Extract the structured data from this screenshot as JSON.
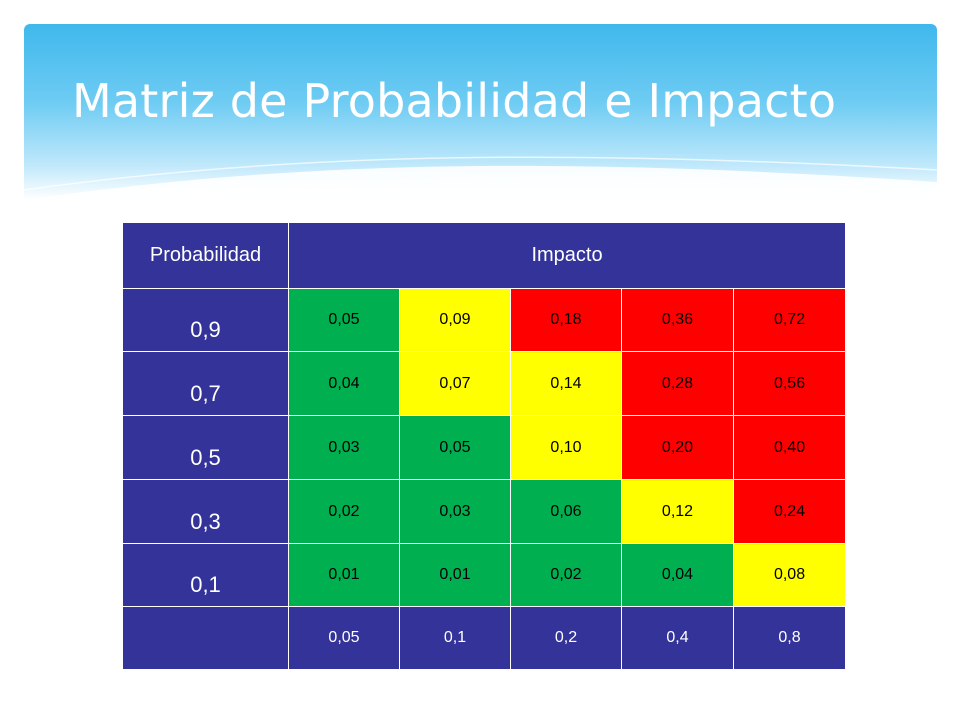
{
  "title": "Matriz de Probabilidad e Impacto",
  "matrix": {
    "prob_header": "Probabilidad",
    "impact_header": "Impacto",
    "rows": [
      {
        "prob": "0,9",
        "cells": [
          "0,05",
          "0,09",
          "0,18",
          "0,36",
          "0,72"
        ],
        "colors": [
          "g",
          "y",
          "r",
          "r",
          "r"
        ]
      },
      {
        "prob": "0,7",
        "cells": [
          "0,04",
          "0,07",
          "0,14",
          "0,28",
          "0,56"
        ],
        "colors": [
          "g",
          "y",
          "y",
          "r",
          "r"
        ]
      },
      {
        "prob": "0,5",
        "cells": [
          "0,03",
          "0,05",
          "0,10",
          "0,20",
          "0,40"
        ],
        "colors": [
          "g",
          "g",
          "y",
          "r",
          "r"
        ]
      },
      {
        "prob": "0,3",
        "cells": [
          "0,02",
          "0,03",
          "0,06",
          "0,12",
          "0,24"
        ],
        "colors": [
          "g",
          "g",
          "g",
          "y",
          "r"
        ]
      },
      {
        "prob": "0,1",
        "cells": [
          "0,01",
          "0,01",
          "0,02",
          "0,04",
          "0,08"
        ],
        "colors": [
          "g",
          "g",
          "g",
          "g",
          "y"
        ]
      }
    ],
    "impact_values": [
      "0,05",
      "0,1",
      "0,2",
      "0,4",
      "0,8"
    ]
  },
  "colors": {
    "g": "#00b050",
    "y": "#ffff00",
    "r": "#ff0000",
    "header": "#333399"
  }
}
